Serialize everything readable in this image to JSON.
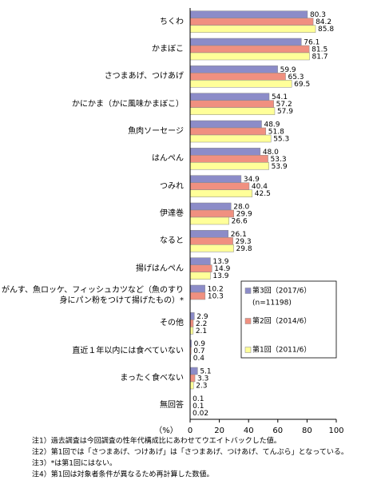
{
  "chart_data": {
    "type": "bar",
    "orientation": "horizontal",
    "categories": [
      "ちくわ",
      "かまぼこ",
      "さつまあげ、つけあげ",
      "かにかま（かに風味かまぼこ）",
      "魚肉ソーセージ",
      "はんぺん",
      "つみれ",
      "伊達巻",
      "なると",
      "揚げはんぺん",
      "がんす、魚ロッケ、フィッシュカツなど（魚のすり身にパン粉をつけて揚げたもの）*",
      "その他",
      "直近１年以内には食べていない",
      "まったく食べない",
      "無回答"
    ],
    "series": [
      {
        "name": "第3回（2017/6）",
        "color": "#8c8cc8",
        "values": [
          80.3,
          76.1,
          59.9,
          54.1,
          48.9,
          48.0,
          34.9,
          28.0,
          26.1,
          13.9,
          10.2,
          2.9,
          0.9,
          5.1,
          0.1
        ],
        "value_labels": [
          "80.3",
          "76.1",
          "59.9",
          "54.1",
          "48.9",
          "48.0",
          "34.9",
          "28.0",
          "26.1",
          "13.9",
          "10.2",
          "2.9",
          "0.9",
          "5.1",
          "0.1"
        ]
      },
      {
        "name": "第2回（2014/6）",
        "color": "#f09080",
        "values": [
          84.2,
          81.5,
          65.3,
          57.2,
          51.8,
          53.3,
          40.4,
          29.9,
          29.3,
          14.9,
          10.3,
          2.2,
          0.7,
          3.3,
          0.1
        ],
        "value_labels": [
          "84.2",
          "81.5",
          "65.3",
          "57.2",
          "51.8",
          "53.3",
          "40.4",
          "29.9",
          "29.3",
          "14.9",
          "10.3",
          "2.2",
          "0.7",
          "3.3",
          "0.1"
        ]
      },
      {
        "name": "第1回（2011/6）",
        "color": "#ffff99",
        "values": [
          85.8,
          81.7,
          69.5,
          57.9,
          55.3,
          53.9,
          42.5,
          26.6,
          29.8,
          13.9,
          null,
          2.1,
          0.4,
          2.3,
          0.02
        ],
        "value_labels": [
          "85.8",
          "81.7",
          "69.5",
          "57.9",
          "55.3",
          "53.9",
          "42.5",
          "26.6",
          "29.8",
          "13.9",
          null,
          "2.1",
          "0.4",
          "2.3",
          "0.02"
        ]
      }
    ],
    "legend_note": "(n=11198)",
    "xlabel": "（%）",
    "xlim": [
      0,
      100
    ],
    "xticks": [
      0,
      20,
      40,
      60,
      80,
      100
    ],
    "notes": [
      "注1）過去調査は今回調査の性年代構成比にあわせてウエイトバックした値。",
      "注2）第1回では「さつまあげ、つけあげ」は「さつまあげ、つけあげ、てんぷら」となっている。",
      "注3）*は第1回にはない。",
      "注4）第1回は対象者条件が異なるため再計算した数値。"
    ]
  }
}
